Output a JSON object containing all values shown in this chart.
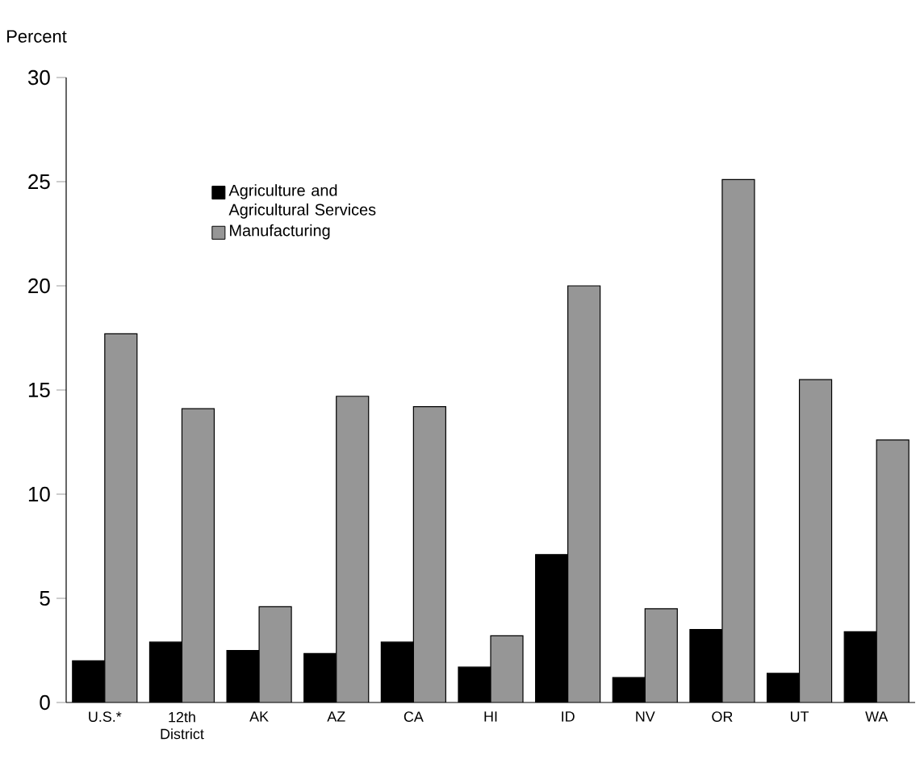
{
  "chart_data": {
    "type": "bar",
    "ylabel": "Percent",
    "categories": [
      "U.S.*",
      "12th District",
      "AK",
      "AZ",
      "CA",
      "HI",
      "ID",
      "NV",
      "OR",
      "UT",
      "WA"
    ],
    "series": [
      {
        "name": "Agriculture and Agricultural Services",
        "color": "#000000",
        "values": [
          2.0,
          2.9,
          2.5,
          2.35,
          2.9,
          1.7,
          7.1,
          1.2,
          3.5,
          1.4,
          3.4
        ]
      },
      {
        "name": "Manufacturing",
        "color": "#969696",
        "values": [
          17.7,
          14.1,
          4.6,
          14.7,
          14.2,
          3.2,
          20.0,
          4.5,
          25.1,
          15.5,
          12.6
        ]
      }
    ],
    "ylim": [
      0,
      30
    ],
    "yticks": [
      0,
      5,
      10,
      15,
      20,
      25,
      30
    ],
    "legend": "top left",
    "grid": false
  }
}
